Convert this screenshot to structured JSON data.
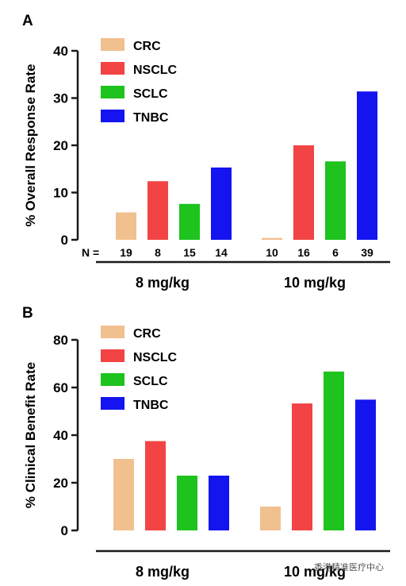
{
  "watermark": "香港精准医疗中心",
  "chart_data": [
    {
      "type": "bar",
      "panel": "A",
      "ylabel": "% Overall Response Rate",
      "ylim": [
        0,
        40
      ],
      "yticks": [
        0,
        10,
        20,
        30,
        40
      ],
      "groups": [
        "8 mg/kg",
        "10 mg/kg"
      ],
      "n_prefix": "N =",
      "series": [
        {
          "name": "CRC",
          "color": "#f1c08f",
          "values": [
            5.8,
            0.4
          ],
          "n": [
            "19",
            "10"
          ]
        },
        {
          "name": "NSCLC",
          "color": "#f24444",
          "values": [
            12.4,
            20.0
          ],
          "n": [
            "8",
            "16"
          ]
        },
        {
          "name": "SCLC",
          "color": "#1ec31e",
          "values": [
            7.6,
            16.6
          ],
          "n": [
            "15",
            "6"
          ]
        },
        {
          "name": "TNBC",
          "color": "#1414f0",
          "values": [
            15.3,
            31.4
          ],
          "n": [
            "14",
            "39"
          ]
        }
      ]
    },
    {
      "type": "bar",
      "panel": "B",
      "ylabel": "% Clinical Benefit Rate",
      "ylim": [
        0,
        80
      ],
      "yticks": [
        0,
        20,
        40,
        60,
        80
      ],
      "groups": [
        "8 mg/kg",
        "10 mg/kg"
      ],
      "series": [
        {
          "name": "CRC",
          "color": "#f1c08f",
          "values": [
            30,
            10
          ]
        },
        {
          "name": "NSCLC",
          "color": "#f24444",
          "values": [
            37.5,
            53.3
          ]
        },
        {
          "name": "SCLC",
          "color": "#1ec31e",
          "values": [
            23,
            66.7
          ]
        },
        {
          "name": "TNBC",
          "color": "#1414f0",
          "values": [
            23,
            54.9
          ]
        }
      ]
    }
  ]
}
